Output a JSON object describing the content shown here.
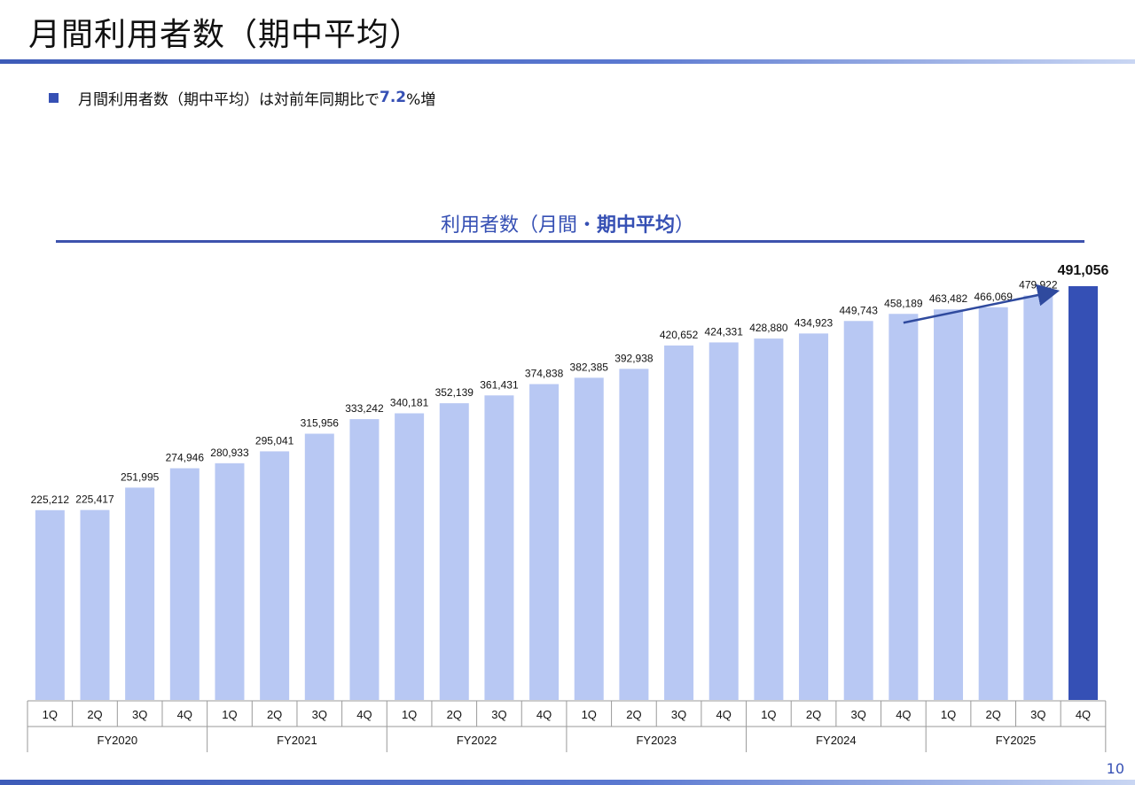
{
  "page": {
    "title": "月間利用者数（期中平均）",
    "page_number": "10"
  },
  "bullet": {
    "prefix": "月間利用者数（期中平均）は対前年同期比で",
    "highlight": "7.2",
    "suffix": "%増"
  },
  "colors": {
    "accent": "#3650b4",
    "bar_light": "#b8c8f3",
    "bar_highlight": "#3550b5",
    "arrow": "#2f4a9e"
  },
  "chart_data": {
    "type": "bar",
    "title_main": "利用者数（月間・",
    "title_bold": "期中平均",
    "title_end": "）",
    "categories": [
      "1Q",
      "2Q",
      "3Q",
      "4Q",
      "1Q",
      "2Q",
      "3Q",
      "4Q",
      "1Q",
      "2Q",
      "3Q",
      "4Q",
      "1Q",
      "2Q",
      "3Q",
      "4Q",
      "1Q",
      "2Q",
      "3Q",
      "4Q",
      "1Q",
      "2Q",
      "3Q",
      "4Q"
    ],
    "fiscal_years": [
      "FY2020",
      "FY2021",
      "FY2022",
      "FY2023",
      "FY2024",
      "FY2025"
    ],
    "values": [
      225212,
      225417,
      251995,
      274946,
      280933,
      295041,
      315956,
      333242,
      340181,
      352139,
      361431,
      374838,
      382385,
      392938,
      420652,
      424331,
      428880,
      434923,
      449743,
      458189,
      463482,
      466069,
      479922,
      491056
    ],
    "value_labels": [
      "225,212",
      "225,417",
      "251,995",
      "274,946",
      "280,933",
      "295,041",
      "315,956",
      "333,242",
      "340,181",
      "352,139",
      "361,431",
      "374,838",
      "382,385",
      "392,938",
      "420,652",
      "424,331",
      "428,880",
      "434,923",
      "449,743",
      "458,189",
      "463,482",
      "466,069",
      "479,922",
      "491,056"
    ],
    "highlight_index": 23,
    "trend_arrow": {
      "from_index": 19,
      "to_index": 23
    },
    "ylim": [
      0,
      500000
    ],
    "grid": false
  }
}
